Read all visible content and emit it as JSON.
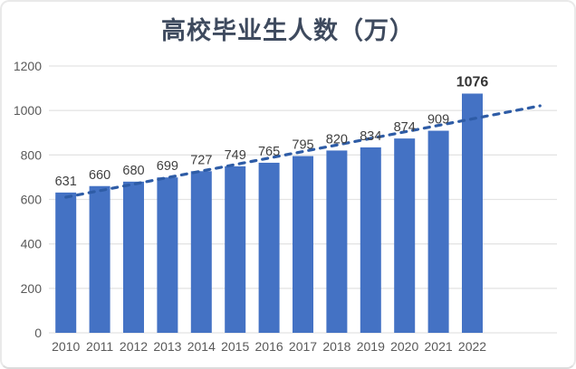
{
  "chart_data": {
    "type": "bar",
    "title": "高校毕业生人数（万）",
    "categories": [
      "2010",
      "2011",
      "2012",
      "2013",
      "2014",
      "2015",
      "2016",
      "2017",
      "2018",
      "2019",
      "2020",
      "2021",
      "2022"
    ],
    "values": [
      631,
      660,
      680,
      699,
      727,
      749,
      765,
      795,
      820,
      834,
      874,
      909,
      1076
    ],
    "data_labels": [
      "631",
      "660",
      "680",
      "699",
      "727",
      "749",
      "765",
      "795",
      "820",
      "834",
      "874",
      "909",
      "1076"
    ],
    "xlabel": "",
    "ylabel": "",
    "ylim": [
      0,
      1200
    ],
    "yticks": [
      0,
      200,
      400,
      600,
      800,
      1000,
      1200
    ],
    "ytick_labels": [
      "0",
      "200",
      "400",
      "600",
      "800",
      "1000",
      "1200"
    ],
    "grid": "horizontal",
    "legend": "none",
    "trendline": {
      "style": "dashed",
      "start": {
        "slot": 0,
        "value": 610
      },
      "end": {
        "slot": 14,
        "value": 1021
      }
    },
    "colors": {
      "bar": "#4472C4",
      "trendline": "#2E5CA6",
      "gridline": "#E4E4E4",
      "title_text": "#3E4A5E",
      "data_label_text": "#404040",
      "axis_text": "#595959"
    }
  }
}
